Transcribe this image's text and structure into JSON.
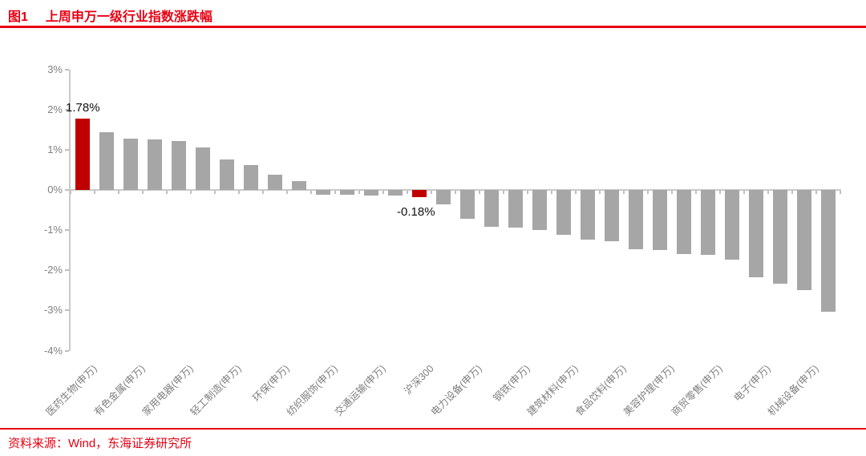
{
  "header": {
    "figure_label": "图1",
    "title": "上周申万一级行业指数涨跌幅"
  },
  "footer": {
    "source": "资料来源：Wind，东海证券研究所"
  },
  "colors": {
    "accent_red": "#e60012",
    "bar_red": "#c00000",
    "bar_gray": "#a6a6a6",
    "axis_text_gray": "#808080"
  },
  "chart_data": {
    "type": "bar",
    "title": "上周申万一级行业指数涨跌幅",
    "xlabel": "",
    "ylabel": "",
    "ylim": [
      -4,
      3
    ],
    "grid": false,
    "legend": "none",
    "yticks": [
      {
        "value": 3,
        "label": "3%"
      },
      {
        "value": 2,
        "label": "2%"
      },
      {
        "value": 1,
        "label": "1%"
      },
      {
        "value": 0,
        "label": "0%"
      },
      {
        "value": -1,
        "label": "-1%"
      },
      {
        "value": -2,
        "label": "-2%"
      },
      {
        "value": -3,
        "label": "-3%"
      },
      {
        "value": -4,
        "label": "-4%"
      }
    ],
    "bars": [
      {
        "label": "医药生物(申万)",
        "value": 1.78,
        "highlight": true,
        "annotation": "1.78%"
      },
      {
        "label": "",
        "value": 1.43,
        "highlight": false
      },
      {
        "label": "有色金属(申万)",
        "value": 1.27,
        "highlight": false
      },
      {
        "label": "",
        "value": 1.25,
        "highlight": false
      },
      {
        "label": "家用电器(申万)",
        "value": 1.21,
        "highlight": false
      },
      {
        "label": "",
        "value": 1.05,
        "highlight": false
      },
      {
        "label": "轻工制造(申万)",
        "value": 0.75,
        "highlight": false
      },
      {
        "label": "",
        "value": 0.62,
        "highlight": false
      },
      {
        "label": "环保(申万)",
        "value": 0.38,
        "highlight": false
      },
      {
        "label": "",
        "value": 0.21,
        "highlight": false
      },
      {
        "label": "纺织服饰(申万)",
        "value": -0.11,
        "highlight": false
      },
      {
        "label": "",
        "value": -0.12,
        "highlight": false
      },
      {
        "label": "交通运输(申万)",
        "value": -0.13,
        "highlight": false
      },
      {
        "label": "",
        "value": -0.14,
        "highlight": false
      },
      {
        "label": "沪深300",
        "value": -0.18,
        "highlight": true,
        "annotation": "-0.18%"
      },
      {
        "label": "",
        "value": -0.36,
        "highlight": false
      },
      {
        "label": "电力设备(申万)",
        "value": -0.71,
        "highlight": false
      },
      {
        "label": "",
        "value": -0.92,
        "highlight": false
      },
      {
        "label": "钢铁(申万)",
        "value": -0.93,
        "highlight": false
      },
      {
        "label": "",
        "value": -1.0,
        "highlight": false
      },
      {
        "label": "建筑材料(申万)",
        "value": -1.12,
        "highlight": false
      },
      {
        "label": "",
        "value": -1.24,
        "highlight": false
      },
      {
        "label": "食品饮料(申万)",
        "value": -1.27,
        "highlight": false
      },
      {
        "label": "",
        "value": -1.47,
        "highlight": false
      },
      {
        "label": "美容护理(申万)",
        "value": -1.49,
        "highlight": false
      },
      {
        "label": "",
        "value": -1.59,
        "highlight": false
      },
      {
        "label": "商贸零售(申万)",
        "value": -1.61,
        "highlight": false
      },
      {
        "label": "",
        "value": -1.73,
        "highlight": false
      },
      {
        "label": "电子(申万)",
        "value": -2.18,
        "highlight": false
      },
      {
        "label": "",
        "value": -2.33,
        "highlight": false
      },
      {
        "label": "机械设备(申万)",
        "value": -2.49,
        "highlight": false
      },
      {
        "label": "",
        "value": -3.03,
        "highlight": false
      }
    ]
  }
}
